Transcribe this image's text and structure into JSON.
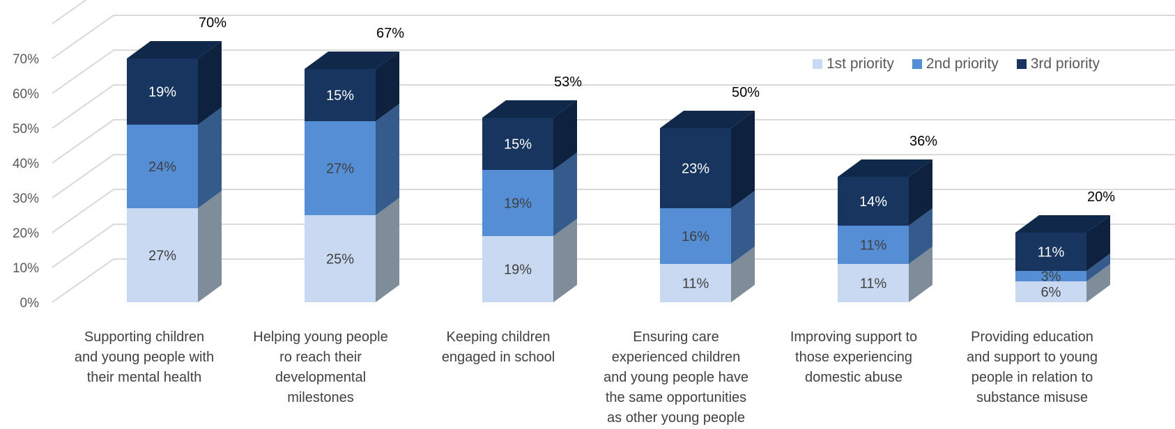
{
  "chart_data": {
    "type": "bar",
    "stacked": true,
    "three_d": true,
    "categories": [
      [
        "Supporting children",
        "and young people with",
        "their mental health"
      ],
      [
        "Helping young people",
        "ro reach their",
        "developmental",
        "milestones"
      ],
      [
        "Keeping children",
        "engaged in school"
      ],
      [
        "Ensuring care",
        "experienced children",
        "and young people have",
        "the same opportunities",
        "as other young people"
      ],
      [
        "Improving support to",
        "those experiencing",
        "domestic abuse"
      ],
      [
        "Providing education",
        "and support to young",
        "people in relation to",
        "substance misuse"
      ]
    ],
    "series": [
      {
        "name": "1st priority",
        "values": [
          27,
          25,
          19,
          11,
          11,
          6
        ],
        "labels": [
          "27%",
          "25%",
          "19%",
          "11%",
          "11%",
          "6%"
        ]
      },
      {
        "name": "2nd priority",
        "values": [
          24,
          27,
          19,
          16,
          11,
          3
        ],
        "labels": [
          "24%",
          "27%",
          "19%",
          "16%",
          "11%",
          "3%"
        ]
      },
      {
        "name": "3rd priority",
        "values": [
          19,
          15,
          15,
          23,
          14,
          11
        ],
        "labels": [
          "19%",
          "15%",
          "15%",
          "23%",
          "14%",
          "11%"
        ]
      }
    ],
    "totals": [
      "70%",
      "67%",
      "53%",
      "50%",
      "36%",
      "20%"
    ],
    "y_ticks": [
      "0%",
      "10%",
      "20%",
      "30%",
      "40%",
      "50%",
      "60%",
      "70%"
    ],
    "ylim": [
      0,
      70
    ],
    "grid": true,
    "legend_position": "top-right",
    "colors": {
      "1st priority": {
        "front": "#c9d9f1",
        "side": "#7f8c99",
        "top": "#d9e4f5",
        "label": "#404040"
      },
      "2nd priority": {
        "front": "#558ed5",
        "side": "#345b8c",
        "top": "#6a9ddb",
        "label": "#404040"
      },
      "3rd priority": {
        "front": "#17355e",
        "side": "#0e223f",
        "top": "#10294a",
        "label": "#ffffff"
      }
    }
  }
}
